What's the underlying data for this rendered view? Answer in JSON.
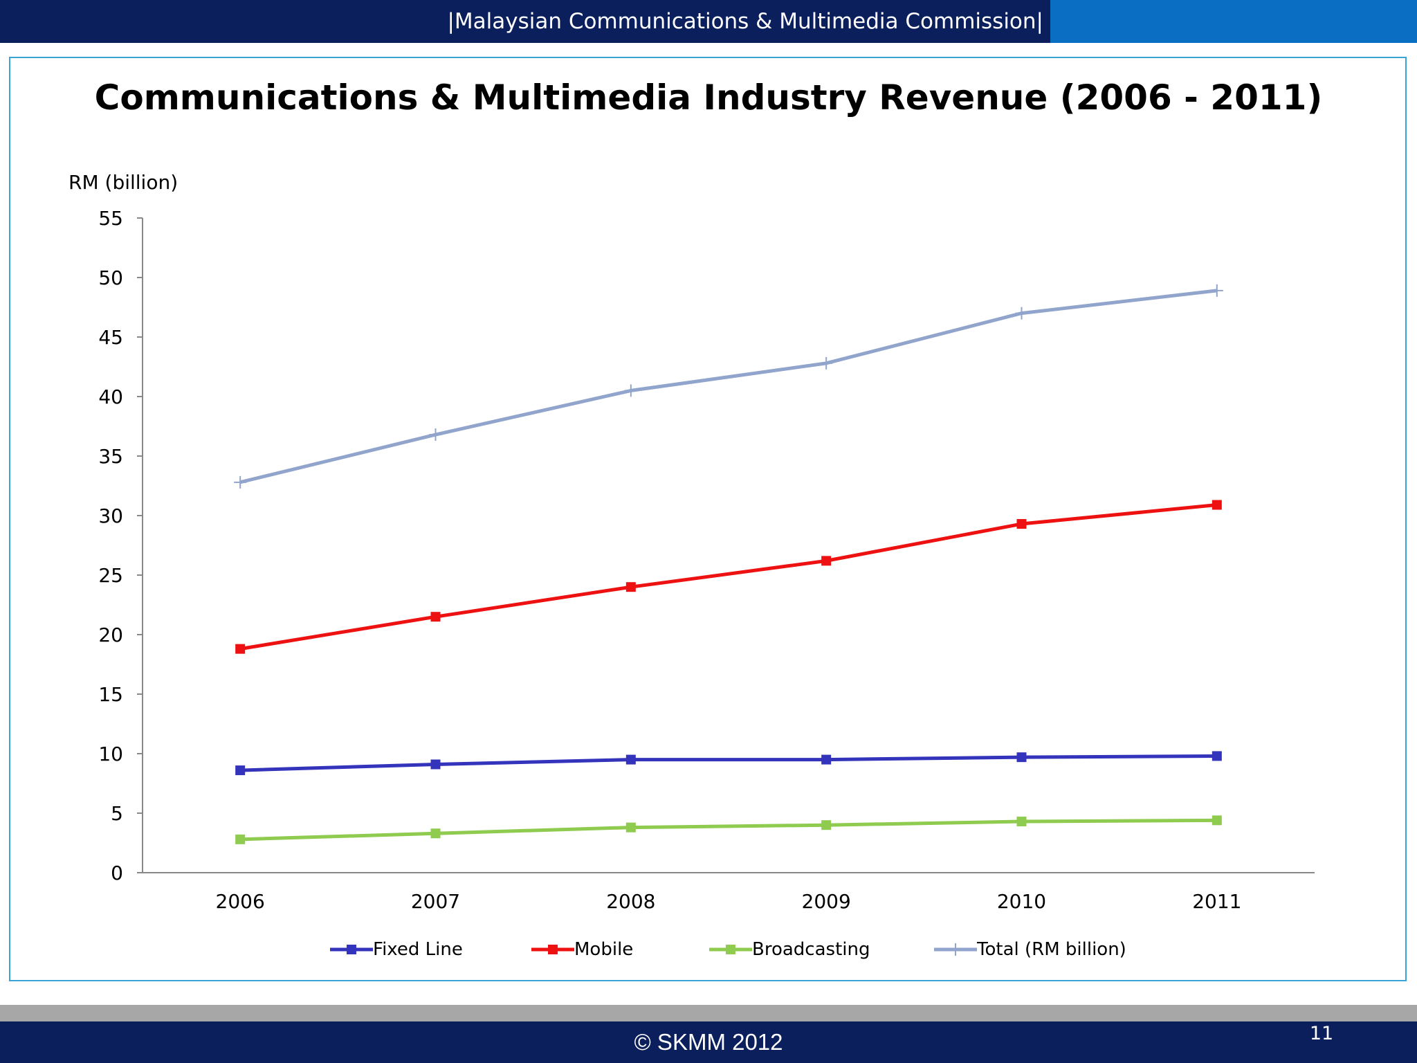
{
  "header": {
    "title": "|Malaysian Communications & Multimedia Commission|"
  },
  "chart_data": {
    "type": "line",
    "title": "Communications & Multimedia Industry Revenue  (2006 - 2011)",
    "ylabel": "RM (billion)",
    "xlabel": "",
    "categories": [
      "2006",
      "2007",
      "2008",
      "2009",
      "2010",
      "2011"
    ],
    "ylim": [
      0,
      55
    ],
    "yticks": [
      0,
      5,
      10,
      15,
      20,
      25,
      30,
      35,
      40,
      45,
      50,
      55
    ],
    "grid": false,
    "legend_position": "bottom",
    "series": [
      {
        "name": "Fixed Line",
        "color": "#3333bb",
        "marker": "square",
        "values": [
          8.6,
          9.1,
          9.5,
          9.5,
          9.7,
          9.8
        ]
      },
      {
        "name": "Mobile",
        "color": "#ee1111",
        "marker": "square",
        "values": [
          18.8,
          21.5,
          24.0,
          26.2,
          29.3,
          30.9
        ]
      },
      {
        "name": "Broadcasting",
        "color": "#8ecb4f",
        "marker": "square",
        "values": [
          2.8,
          3.3,
          3.8,
          4.0,
          4.3,
          4.4
        ]
      },
      {
        "name": "Total (RM billion)",
        "color": "#90a4cc",
        "marker": "plus",
        "values": [
          32.8,
          36.8,
          40.5,
          42.8,
          47.0,
          48.9
        ]
      }
    ]
  },
  "footer": {
    "copyright": "© SKMM 2012",
    "page_number": "11"
  }
}
